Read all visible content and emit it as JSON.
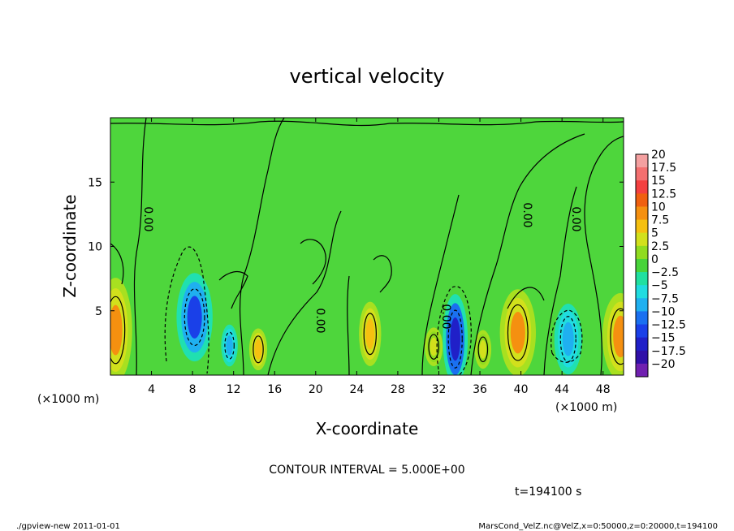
{
  "chart_data": {
    "type": "heatmap",
    "title": "vertical velocity",
    "xlabel": "X-coordinate",
    "ylabel": "Z-coordinate",
    "x_unit": "(×1000 m)",
    "x_unit_right": "(×1000 m)",
    "xlim": [
      0,
      50
    ],
    "ylim": [
      0,
      20
    ],
    "x_ticks": [
      4,
      8,
      12,
      16,
      20,
      24,
      28,
      32,
      36,
      40,
      44,
      48
    ],
    "y_ticks": [
      5,
      10,
      15
    ],
    "contour_label": "0.00",
    "contour_interval_text": "CONTOUR INTERVAL = 5.000E+00",
    "time_text": "t=194100 s",
    "footer_left": "./gpview-new  2011-01-01",
    "footer_right": "MarsCond_VelZ.nc@VelZ,x=0:50000,z=0:20000,t=194100",
    "colorbar": {
      "labels": [
        "20",
        "17.5",
        "15",
        "12.5",
        "10",
        "7.5",
        "5",
        "2.5",
        "0",
        "-2.5",
        "-5",
        "-7.5",
        "-10",
        "-12.5",
        "-15",
        "-17.5",
        "-20"
      ],
      "colors": [
        "#f4a0a0",
        "#f47070",
        "#f44040",
        "#f06010",
        "#f59010",
        "#f5c010",
        "#d2e01c",
        "#90dc20",
        "#48d43a",
        "#20e0a0",
        "#20dce0",
        "#1fb0f0",
        "#1a70f0",
        "#1a40e8",
        "#2020c8",
        "#3010a8",
        "#7020b0"
      ]
    },
    "features": [
      {
        "x": 0.5,
        "z": 3.5,
        "w": 2.4,
        "h": 6.5,
        "value": 10
      },
      {
        "x": 8.2,
        "z": 4.5,
        "w": 2.6,
        "h": 5.5,
        "value": -12.5
      },
      {
        "x": 11.6,
        "z": 2.3,
        "w": 1.2,
        "h": 2.6,
        "value": -7.5
      },
      {
        "x": 14.4,
        "z": 2.0,
        "w": 1.3,
        "h": 2.6,
        "value": 7.5
      },
      {
        "x": 25.3,
        "z": 3.2,
        "w": 1.6,
        "h": 4.0,
        "value": 7.5
      },
      {
        "x": 31.5,
        "z": 2.2,
        "w": 1.3,
        "h": 2.4,
        "value": 5
      },
      {
        "x": 33.6,
        "z": 2.8,
        "w": 1.8,
        "h": 5.6,
        "value": -15
      },
      {
        "x": 36.3,
        "z": 2.0,
        "w": 1.2,
        "h": 2.4,
        "value": 5
      },
      {
        "x": 39.7,
        "z": 3.3,
        "w": 2.6,
        "h": 5.4,
        "value": 10
      },
      {
        "x": 44.6,
        "z": 2.8,
        "w": 2.0,
        "h": 4.4,
        "value": -7.5
      },
      {
        "x": 49.7,
        "z": 3.0,
        "w": 2.6,
        "h": 5.4,
        "value": 10
      }
    ]
  }
}
